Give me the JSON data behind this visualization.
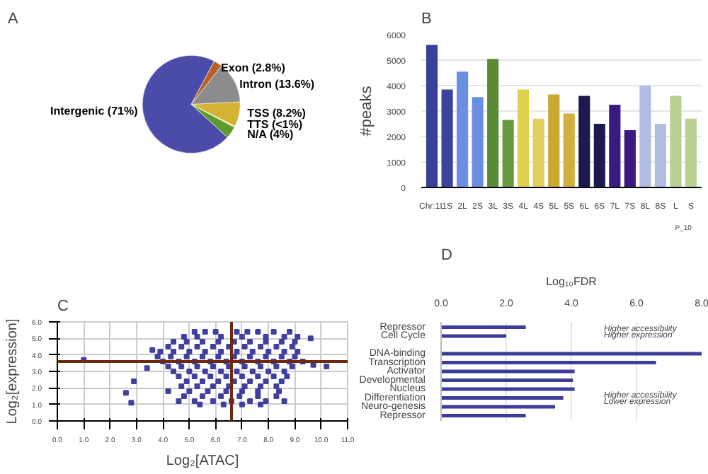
{
  "chart_data": [
    {
      "type": "pie",
      "title": "A",
      "categories": [
        "Intergenic (71%)",
        "N/A (4%)",
        "TTS (<1%)",
        "TSS (8.2%)",
        "Intron (13.6%)",
        "Exon (2.8%)"
      ],
      "values": [
        71,
        4,
        0.4,
        8.2,
        13.6,
        2.8
      ],
      "colors": [
        "#4b4baa",
        "#5f9a2e",
        "#e8e070",
        "#d4b232",
        "#8c8c8c",
        "#b8602a"
      ]
    },
    {
      "type": "bar",
      "title": "B",
      "ylabel": "#peaks",
      "categories": [
        "Chr:1L",
        "1S",
        "2L",
        "2S",
        "3L",
        "3S",
        "4L",
        "4S",
        "5L",
        "5S",
        "6L",
        "6S",
        "7L",
        "7S",
        "8L",
        "8S",
        "L",
        "S"
      ],
      "values": [
        5600,
        3850,
        4550,
        3550,
        5050,
        2650,
        3850,
        2700,
        3650,
        2900,
        3600,
        2500,
        3250,
        2250,
        4000,
        2500,
        3600,
        2700
      ],
      "colors": [
        "#3a3f9a",
        "#3a449a",
        "#6b8fe0",
        "#6b8fe0",
        "#5a8a35",
        "#6a9a40",
        "#e0d050",
        "#e0d060",
        "#c8a830",
        "#d0b040",
        "#1a1a50",
        "#1a1a50",
        "#3a1a80",
        "#3a1a80",
        "#b0bce0",
        "#b0bce0",
        "#b8d090",
        "#b8d090"
      ],
      "ylim": [
        0,
        6000
      ],
      "yticks": [
        0,
        1000,
        2000,
        3000,
        4000,
        5000,
        6000
      ],
      "grid": "y",
      "annotations": [
        "P_10"
      ]
    },
    {
      "type": "scatter",
      "title": "C",
      "xlabel": "Log₂[ATAC]",
      "ylabel": "Log₂[expression]",
      "marker": "square",
      "grid": true,
      "xlim": [
        0,
        11
      ],
      "ylim": [
        0,
        6
      ],
      "xticks": [
        {
          "value": 0,
          "label": "0.0"
        },
        {
          "value": 1,
          "label": "1.0"
        },
        {
          "value": 2,
          "label": "2.0"
        },
        {
          "value": 3,
          "label": "3.0"
        },
        {
          "value": 4,
          "label": "4.0"
        },
        {
          "value": 5,
          "label": "5.0"
        },
        {
          "value": 6,
          "label": "6.0"
        },
        {
          "value": 7,
          "label": "7.0"
        },
        {
          "value": 8,
          "label": "8.0"
        },
        {
          "value": 9,
          "label": "9.0"
        },
        {
          "value": 10,
          "label": "10.0"
        },
        {
          "value": 11,
          "label": "11.0"
        }
      ],
      "yticks": [
        {
          "value": 0,
          "label": "0.0"
        },
        {
          "value": 1,
          "label": "1.0"
        },
        {
          "value": 2,
          "label": "2.0"
        },
        {
          "value": 3,
          "label": "3.0"
        },
        {
          "value": 4,
          "label": "4.0"
        },
        {
          "value": 5,
          "label": "5.0"
        },
        {
          "value": 6,
          "label": "6.0"
        }
      ],
      "ref_lines": [
        {
          "axis": "x",
          "value": 6.6,
          "color": "#6b2a10"
        },
        {
          "axis": "y",
          "value": 3.6,
          "color": "#6b2a10"
        }
      ],
      "series": [
        {
          "color": "#4040a0",
          "x": [
            5.2,
            5.6,
            6.0,
            6.8,
            7.2,
            7.6,
            8.2,
            8.8,
            4.8,
            5.3,
            6.2,
            7.0,
            7.9,
            8.6,
            9.1,
            4.4,
            4.9,
            5.5,
            6.1,
            6.7,
            7.3,
            7.9,
            8.5,
            9.0,
            4.2,
            4.7,
            5.3,
            5.9,
            6.5,
            7.1,
            7.7,
            8.3,
            8.9,
            3.9,
            4.4,
            5.0,
            5.6,
            6.2,
            6.8,
            7.4,
            8.0,
            8.6,
            9.1,
            3.8,
            4.3,
            4.9,
            5.5,
            6.1,
            6.7,
            7.3,
            7.9,
            8.5,
            9.0,
            4.0,
            4.6,
            5.2,
            5.8,
            6.4,
            7.0,
            7.6,
            8.2,
            8.8,
            9.3,
            4.2,
            4.7,
            5.3,
            5.9,
            6.5,
            7.1,
            7.7,
            8.3,
            8.9,
            4.4,
            5.0,
            5.6,
            6.2,
            6.8,
            7.4,
            8.0,
            8.6,
            4.6,
            5.2,
            5.8,
            6.4,
            7.0,
            7.6,
            8.2,
            8.7,
            4.9,
            5.5,
            6.1,
            6.7,
            7.3,
            7.9,
            8.5,
            4.7,
            5.3,
            5.9,
            6.5,
            7.1,
            7.7,
            8.3,
            4.2,
            5.0,
            5.7,
            6.4,
            7.0,
            7.6,
            8.4,
            4.8,
            5.5,
            6.2,
            6.9,
            7.6,
            8.3,
            4.6,
            5.2,
            5.9,
            6.6,
            7.3,
            7.9,
            8.6,
            5.4,
            6.3,
            7.0,
            7.7,
            1.0,
            2.6,
            2.8,
            2.9,
            3.4,
            3.6,
            10.2,
            9.7,
            9.6
          ],
          "values": [
            5.4,
            5.4,
            5.4,
            5.4,
            5.4,
            5.4,
            5.4,
            5.4,
            5.1,
            5.1,
            5.1,
            5.1,
            5.1,
            5.1,
            5.1,
            4.8,
            4.8,
            4.8,
            4.8,
            4.8,
            4.8,
            4.8,
            4.8,
            4.8,
            4.5,
            4.5,
            4.5,
            4.5,
            4.5,
            4.5,
            4.5,
            4.5,
            4.5,
            4.2,
            4.2,
            4.2,
            4.2,
            4.2,
            4.2,
            4.2,
            4.2,
            4.2,
            4.2,
            3.9,
            3.9,
            3.9,
            3.9,
            3.9,
            3.9,
            3.9,
            3.9,
            3.9,
            3.9,
            3.6,
            3.6,
            3.6,
            3.6,
            3.6,
            3.6,
            3.6,
            3.6,
            3.6,
            3.6,
            3.3,
            3.3,
            3.3,
            3.3,
            3.3,
            3.3,
            3.3,
            3.3,
            3.3,
            3.0,
            3.0,
            3.0,
            3.0,
            3.0,
            3.0,
            3.0,
            3.0,
            2.7,
            2.7,
            2.7,
            2.7,
            2.7,
            2.7,
            2.7,
            2.7,
            2.4,
            2.4,
            2.4,
            2.4,
            2.4,
            2.4,
            2.4,
            2.1,
            2.1,
            2.1,
            2.1,
            2.1,
            2.1,
            2.1,
            1.8,
            1.8,
            1.8,
            1.8,
            1.8,
            1.8,
            1.8,
            1.5,
            1.5,
            1.5,
            1.5,
            1.5,
            1.5,
            1.2,
            1.2,
            1.2,
            1.2,
            1.2,
            1.2,
            1.2,
            1.0,
            1.0,
            1.0,
            1.0,
            3.7,
            1.7,
            1.1,
            2.4,
            3.2,
            4.3,
            3.3,
            3.4,
            5.0
          ]
        }
      ]
    },
    {
      "type": "bar",
      "title": "D",
      "orientation": "horizontal",
      "xlabel": "Log₁₀FDR",
      "categories": [
        "Repressor",
        "Cell Cycle",
        null,
        "DNA-binding",
        "Transcription",
        "Activator",
        "Developmental",
        "Nucleus",
        "Differentiation",
        "Neuro-genesis",
        "Repressor"
      ],
      "values": [
        2.6,
        2.0,
        null,
        8.0,
        6.6,
        4.1,
        4.05,
        4.1,
        3.75,
        3.5,
        2.6
      ],
      "color": "#3c3c9a",
      "xlim": [
        0,
        8
      ],
      "xticks": [
        {
          "value": 0,
          "label": "0.0"
        },
        {
          "value": 2,
          "label": "2.0"
        },
        {
          "value": 4,
          "label": "4.0"
        },
        {
          "value": 6,
          "label": "6.0"
        },
        {
          "value": 8,
          "label": "8.0"
        }
      ],
      "grid": "x",
      "annotations": [
        "Higher accessibility",
        "Higher expression",
        "Higher accessibility",
        "Lower expression"
      ]
    }
  ]
}
